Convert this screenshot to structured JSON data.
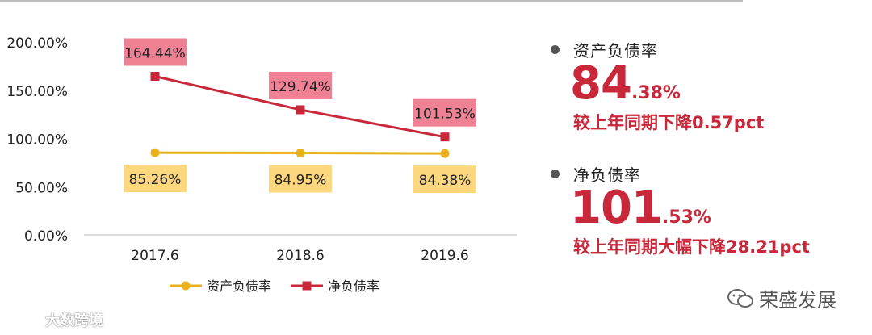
{
  "chart_data": {
    "type": "line",
    "categories": [
      "2017.6",
      "2018.6",
      "2019.6"
    ],
    "ylim": [
      0,
      200
    ],
    "yticks": [
      0,
      50,
      100,
      150,
      200
    ],
    "ytick_labels": [
      "0.00%",
      "50.00%",
      "100.00%",
      "150.00%",
      "200.00%"
    ],
    "grid": false,
    "legend_position": "bottom",
    "series": [
      {
        "name": "资产负债率",
        "values": [
          85.26,
          84.95,
          84.38
        ],
        "labels": [
          "85.26%",
          "84.95%",
          "84.38%"
        ],
        "color": "#e8b21e",
        "label_bg": "#fcd77e",
        "marker": "circle"
      },
      {
        "name": "净负债率",
        "values": [
          164.44,
          129.74,
          101.53
        ],
        "labels": [
          "164.44%",
          "129.74%",
          "101.53%"
        ],
        "color": "#c8283a",
        "label_bg": "#ee8294",
        "marker": "square"
      }
    ]
  },
  "stats": [
    {
      "label": "资产负债率",
      "value_int": "84",
      "value_dec": ".38%",
      "change": "较上年同期下降0.57pct"
    },
    {
      "label": "净负债率",
      "value_int": "101",
      "value_dec": ".53%",
      "change": "较上年同期大幅下降28.21pct"
    }
  ],
  "watermarks": {
    "left": "大数跨境",
    "right": "荣盛发展"
  }
}
